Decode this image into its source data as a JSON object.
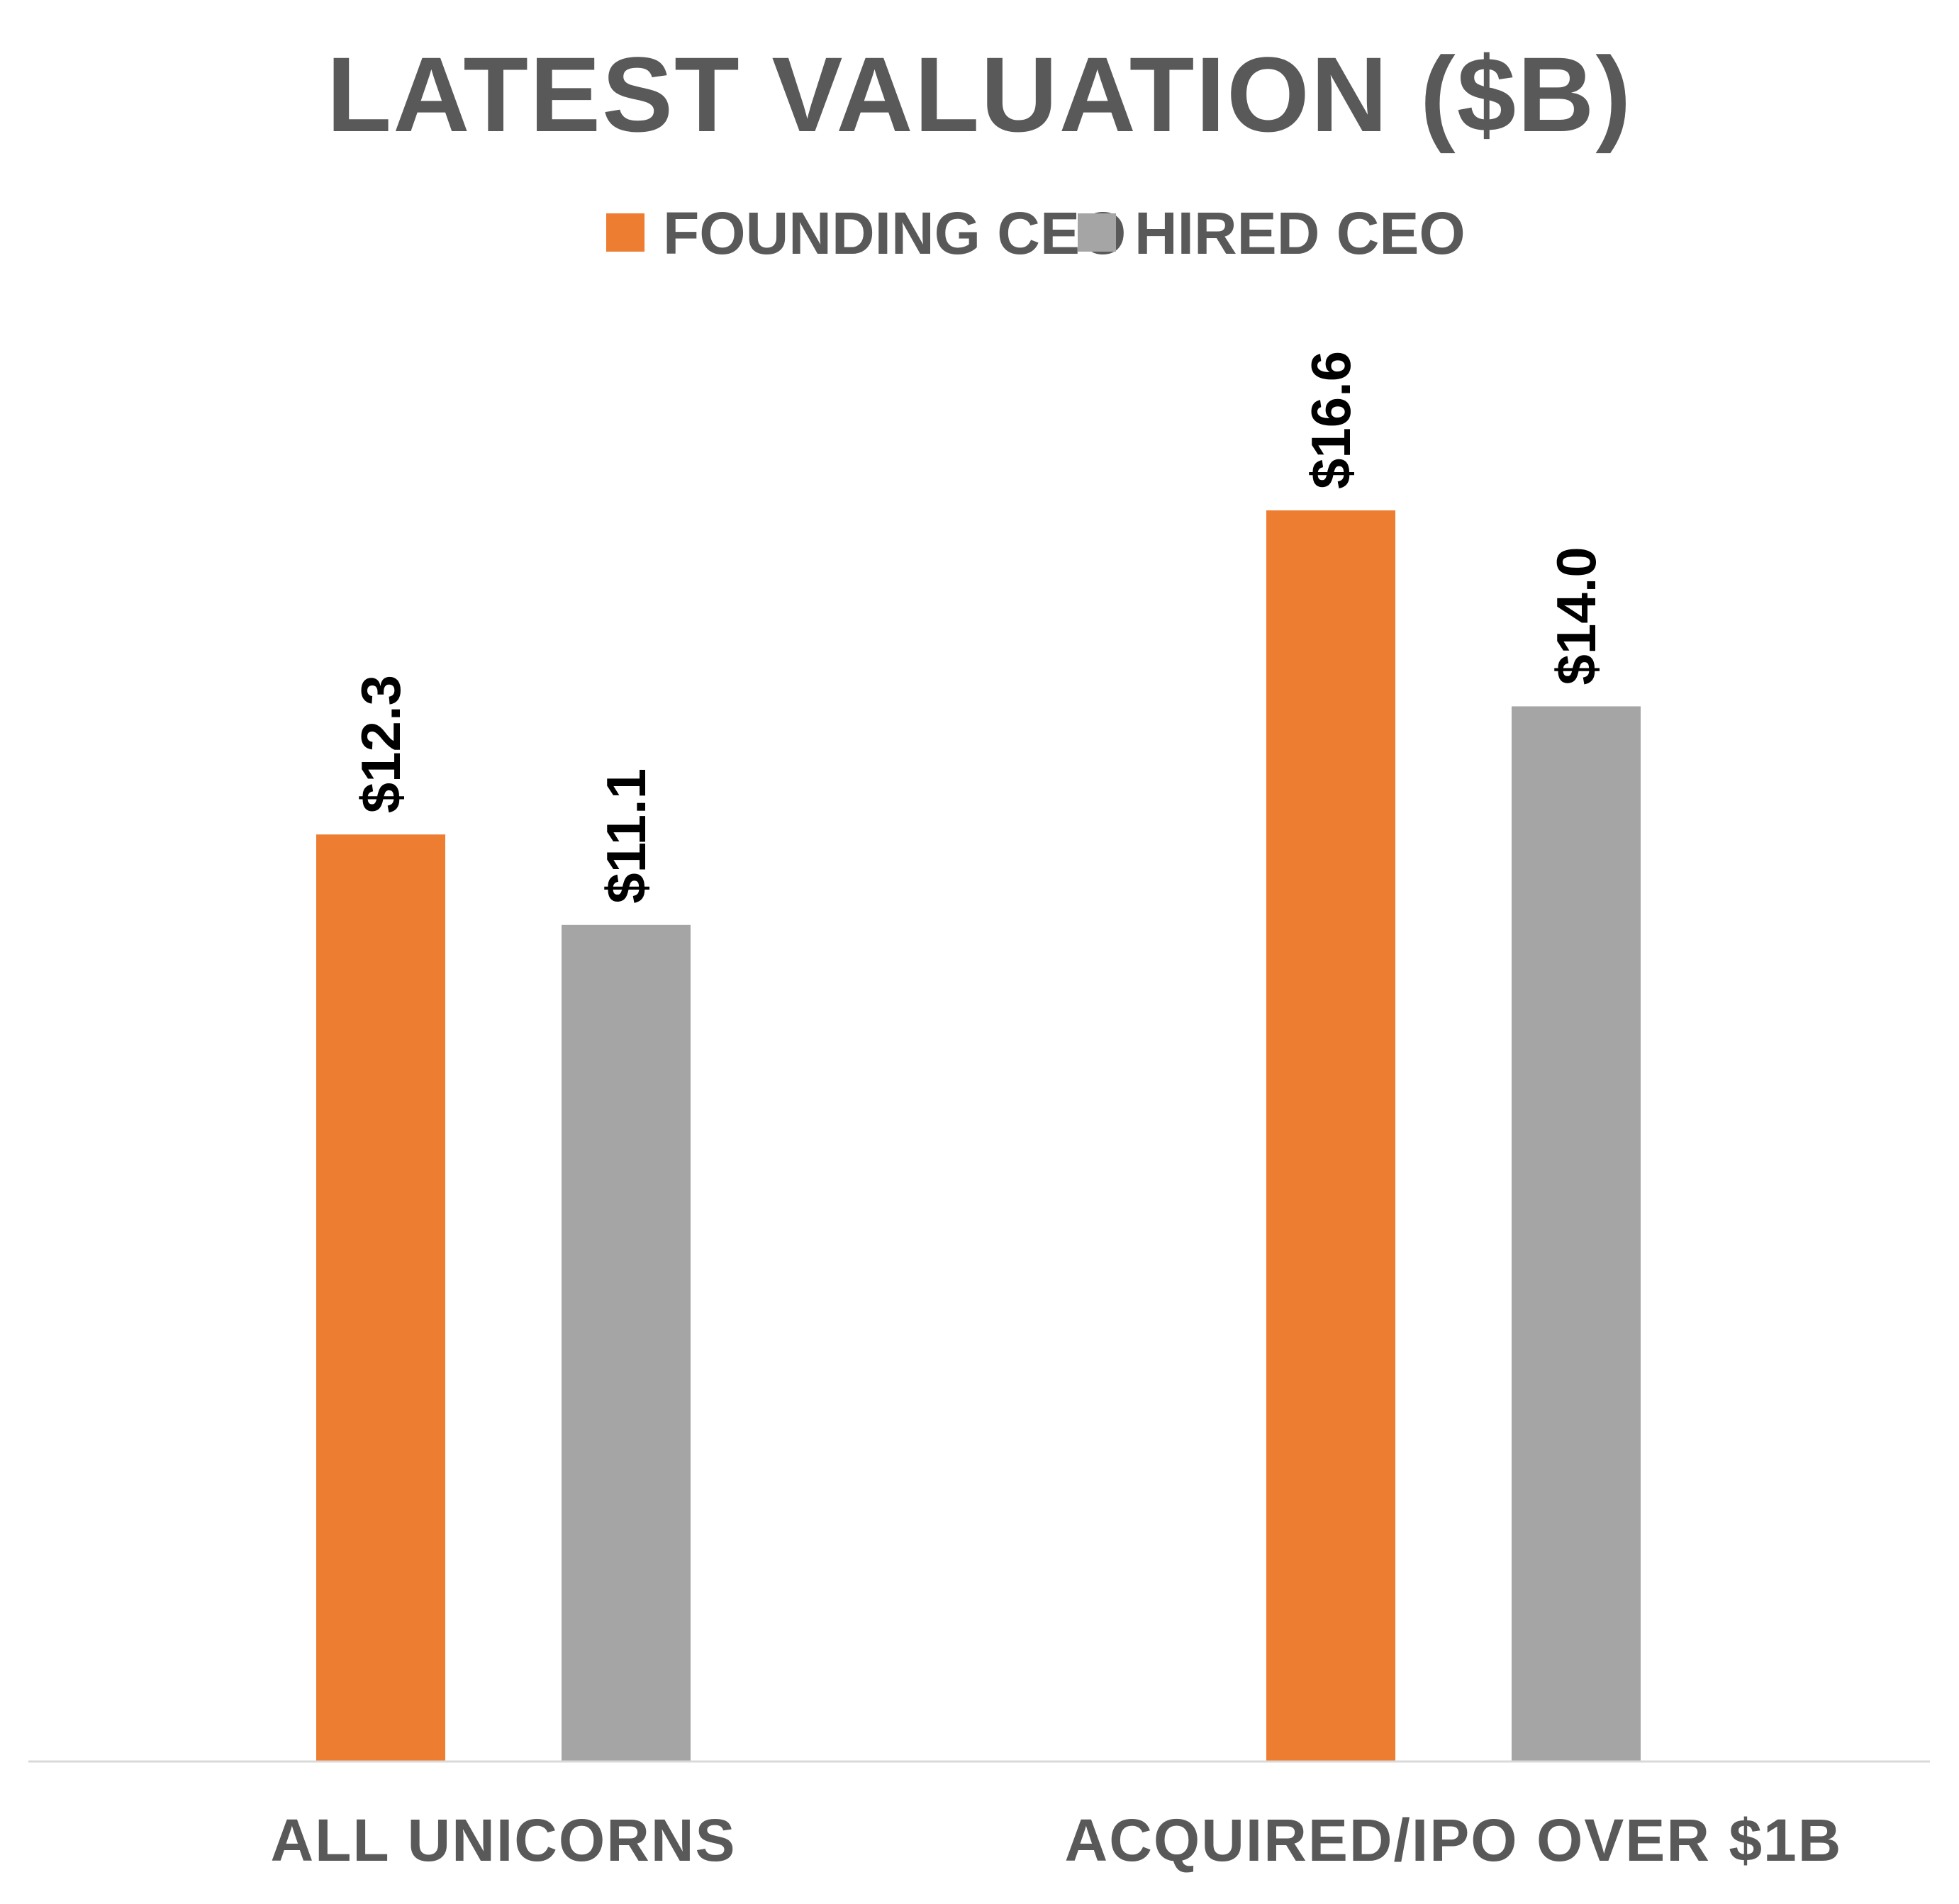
{
  "chart_data": {
    "type": "bar",
    "title": "LATEST VALUATION ($B)",
    "categories": [
      "ALL UNICORNS",
      "ACQUIRED/IPO OVER $1B"
    ],
    "series": [
      {
        "name": "FOUNDING CEO",
        "color": "#ED7D31",
        "values": [
          12.3,
          16.6
        ],
        "labels": [
          "$12.3",
          "$16.6"
        ]
      },
      {
        "name": "HIRED CEO",
        "color": "#A5A5A5",
        "values": [
          11.1,
          14.0
        ],
        "labels": [
          "$11.1",
          "$14.0"
        ]
      }
    ],
    "ylim": [
      0,
      16.6
    ],
    "grid": false,
    "legend_position": "top",
    "data_label_orientation": "vertical"
  }
}
